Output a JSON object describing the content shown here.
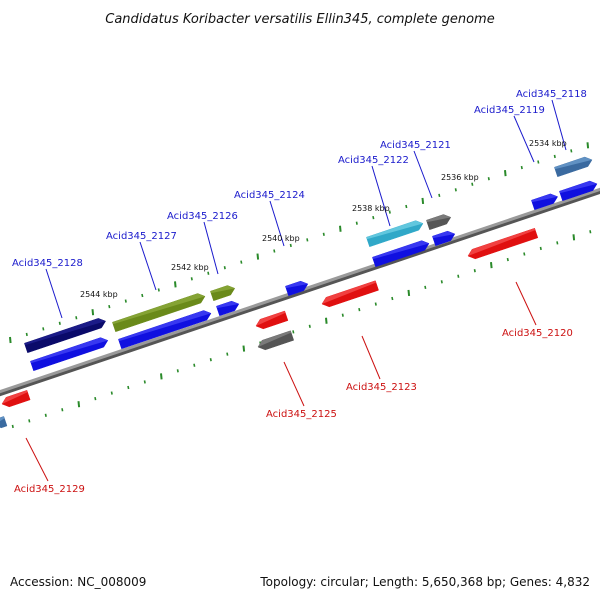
{
  "title": "Candidatus Koribacter versatilis Ellin345, complete genome",
  "footer": {
    "accession": "Accession: NC_008009",
    "topology": "Topology: circular; Length: 5,650,368 bp; Genes: 4,832"
  },
  "colors": {
    "forward_label": "#1a1acc",
    "reverse_label": "#cc1111",
    "backbone": "#7a7a7a",
    "ticks": "#2a8a2a"
  },
  "kbp_marks": [
    {
      "label": "2534 kbp",
      "pos": 2534
    },
    {
      "label": "2536 kbp",
      "pos": 2536
    },
    {
      "label": "2538 kbp",
      "pos": 2538
    },
    {
      "label": "2540 kbp",
      "pos": 2540
    },
    {
      "label": "2542 kbp",
      "pos": 2542
    },
    {
      "label": "2544 kbp",
      "pos": 2544
    }
  ],
  "gene_labels": [
    {
      "name": "Acid345_2118",
      "strand": "forward"
    },
    {
      "name": "Acid345_2119",
      "strand": "forward"
    },
    {
      "name": "Acid345_2121",
      "strand": "forward"
    },
    {
      "name": "Acid345_2122",
      "strand": "forward"
    },
    {
      "name": "Acid345_2124",
      "strand": "forward"
    },
    {
      "name": "Acid345_2126",
      "strand": "forward"
    },
    {
      "name": "Acid345_2127",
      "strand": "forward"
    },
    {
      "name": "Acid345_2128",
      "strand": "forward"
    },
    {
      "name": "Acid345_2120",
      "strand": "reverse"
    },
    {
      "name": "Acid345_2123",
      "strand": "reverse"
    },
    {
      "name": "Acid345_2125",
      "strand": "reverse"
    },
    {
      "name": "Acid345_2129",
      "strand": "reverse"
    }
  ]
}
